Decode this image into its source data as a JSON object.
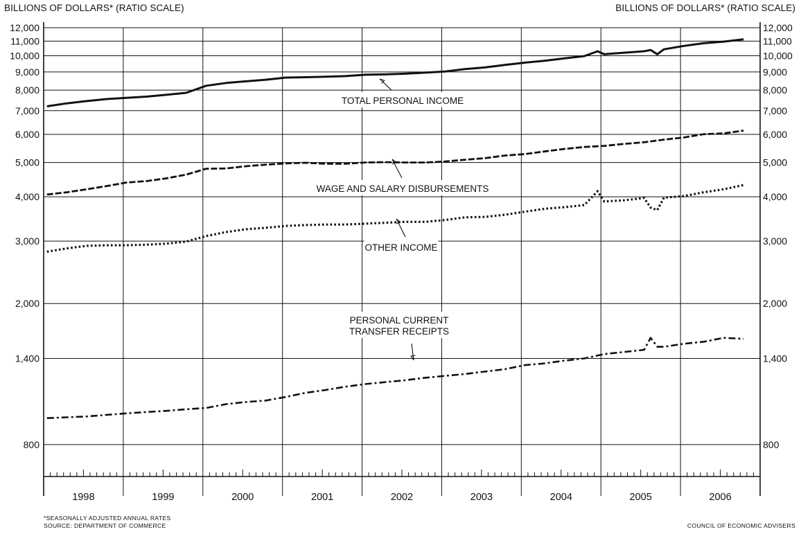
{
  "header": {
    "left_title": "BILLIONS OF DOLLARS* (RATIO SCALE)",
    "right_title": "BILLIONS OF DOLLARS* (RATIO SCALE)"
  },
  "footer": {
    "note": "*SEASONALLY ADJUSTED ANNUAL RATES",
    "source": "SOURCE: DEPARTMENT OF COMMERCE",
    "credit": "COUNCIL OF ECONOMIC ADVISERS"
  },
  "colors": {
    "ink": "#111111",
    "background": "#ffffff"
  },
  "chart_data": {
    "type": "line",
    "y_scale": "log",
    "ylim": [
      650,
      12000
    ],
    "grid": true,
    "y_ticks": [
      800,
      1400,
      2000,
      3000,
      4000,
      5000,
      6000,
      7000,
      8000,
      9000,
      10000,
      11000,
      12000
    ],
    "y_tick_labels": [
      "800",
      "1,400",
      "2,000",
      "3,000",
      "4,000",
      "5,000",
      "6,000",
      "7,000",
      "8,000",
      "9,000",
      "10,000",
      "11,000",
      "12,000"
    ],
    "x_categories": [
      "1998",
      "1999",
      "2000",
      "2001",
      "2002",
      "2003",
      "2004",
      "2005",
      "2006"
    ],
    "x_range": [
      "1998-01",
      "2006-12"
    ],
    "series": [
      {
        "name": "TOTAL PERSONAL INCOME",
        "style": "solid",
        "label_lines": [
          "TOTAL PERSONAL INCOME"
        ],
        "x": [
          "1998-01",
          "1998-04",
          "1998-07",
          "1998-10",
          "1999-01",
          "1999-04",
          "1999-07",
          "1999-10",
          "2000-01",
          "2000-04",
          "2000-07",
          "2000-10",
          "2001-01",
          "2001-04",
          "2001-07",
          "2001-10",
          "2002-01",
          "2002-04",
          "2002-07",
          "2002-10",
          "2003-01",
          "2003-04",
          "2003-07",
          "2003-10",
          "2004-01",
          "2004-04",
          "2004-07",
          "2004-10",
          "2004-12",
          "2005-01",
          "2005-04",
          "2005-07",
          "2005-08",
          "2005-09",
          "2005-10",
          "2006-01",
          "2006-04",
          "2006-07",
          "2006-10"
        ],
        "values": [
          7200,
          7340,
          7450,
          7550,
          7610,
          7670,
          7760,
          7860,
          8230,
          8380,
          8470,
          8560,
          8680,
          8700,
          8730,
          8760,
          8840,
          8860,
          8900,
          8960,
          9030,
          9170,
          9270,
          9420,
          9560,
          9680,
          9830,
          9980,
          10300,
          10100,
          10200,
          10300,
          10380,
          10100,
          10430,
          10660,
          10850,
          10960,
          11130
        ]
      },
      {
        "name": "WAGE AND SALARY DISBURSEMENTS",
        "style": "dashed",
        "label_lines": [
          "WAGE AND SALARY DISBURSEMENTS"
        ],
        "x": [
          "1998-01",
          "1998-04",
          "1998-07",
          "1998-10",
          "1999-01",
          "1999-04",
          "1999-07",
          "1999-10",
          "2000-01",
          "2000-04",
          "2000-07",
          "2000-10",
          "2001-01",
          "2001-04",
          "2001-07",
          "2001-10",
          "2002-01",
          "2002-04",
          "2002-07",
          "2002-10",
          "2003-01",
          "2003-04",
          "2003-07",
          "2003-10",
          "2004-01",
          "2004-04",
          "2004-07",
          "2004-10",
          "2005-01",
          "2005-04",
          "2005-07",
          "2005-10",
          "2006-01",
          "2006-04",
          "2006-07",
          "2006-10"
        ],
        "values": [
          4060,
          4120,
          4200,
          4290,
          4390,
          4430,
          4510,
          4620,
          4800,
          4810,
          4880,
          4930,
          4970,
          4990,
          4960,
          4960,
          5000,
          5010,
          5000,
          5000,
          5030,
          5090,
          5140,
          5230,
          5280,
          5370,
          5460,
          5530,
          5570,
          5640,
          5700,
          5800,
          5880,
          6010,
          6040,
          6150
        ]
      },
      {
        "name": "OTHER INCOME",
        "style": "dotted",
        "label_lines": [
          "OTHER INCOME"
        ],
        "x": [
          "1998-01",
          "1998-04",
          "1998-07",
          "1998-10",
          "1999-01",
          "1999-04",
          "1999-07",
          "1999-10",
          "2000-01",
          "2000-04",
          "2000-07",
          "2000-10",
          "2001-01",
          "2001-04",
          "2001-07",
          "2001-10",
          "2002-01",
          "2002-04",
          "2002-07",
          "2002-10",
          "2003-01",
          "2003-04",
          "2003-07",
          "2003-10",
          "2004-01",
          "2004-04",
          "2004-07",
          "2004-10",
          "2004-12",
          "2005-01",
          "2005-04",
          "2005-07",
          "2005-08",
          "2005-09",
          "2005-10",
          "2006-01",
          "2006-04",
          "2006-07",
          "2006-10"
        ],
        "values": [
          2800,
          2860,
          2910,
          2920,
          2920,
          2930,
          2950,
          2990,
          3100,
          3180,
          3240,
          3270,
          3310,
          3330,
          3340,
          3340,
          3360,
          3380,
          3400,
          3400,
          3440,
          3500,
          3510,
          3560,
          3630,
          3700,
          3740,
          3790,
          4150,
          3880,
          3910,
          3970,
          3730,
          3670,
          3980,
          4020,
          4120,
          4200,
          4320
        ]
      },
      {
        "name": "PERSONAL CURRENT TRANSFER RECEIPTS",
        "style": "dash-dot",
        "label_lines": [
          "PERSONAL CURRENT",
          "TRANSFER RECEIPTS"
        ],
        "x": [
          "1998-01",
          "1998-04",
          "1998-07",
          "1998-10",
          "1999-01",
          "1999-04",
          "1999-07",
          "1999-10",
          "2000-01",
          "2000-04",
          "2000-07",
          "2000-10",
          "2001-01",
          "2001-04",
          "2001-07",
          "2001-10",
          "2002-01",
          "2002-04",
          "2002-07",
          "2002-10",
          "2003-01",
          "2003-04",
          "2003-07",
          "2003-10",
          "2004-01",
          "2004-04",
          "2004-07",
          "2004-10",
          "2005-01",
          "2005-04",
          "2005-07",
          "2005-08",
          "2005-09",
          "2005-10",
          "2006-01",
          "2006-04",
          "2006-07",
          "2006-10"
        ],
        "values": [
          950,
          955,
          960,
          970,
          980,
          988,
          996,
          1006,
          1015,
          1040,
          1055,
          1065,
          1090,
          1120,
          1140,
          1165,
          1185,
          1200,
          1215,
          1235,
          1250,
          1265,
          1285,
          1305,
          1340,
          1355,
          1380,
          1400,
          1440,
          1460,
          1480,
          1600,
          1510,
          1510,
          1540,
          1560,
          1600,
          1590
        ]
      }
    ]
  }
}
